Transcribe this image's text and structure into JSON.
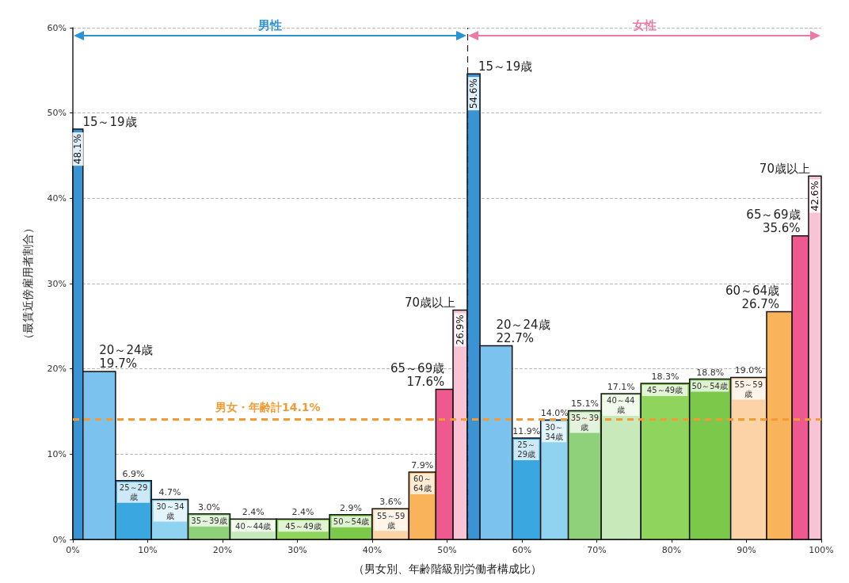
{
  "chart_data": {
    "type": "histogram",
    "xlabel": "（男女別、年齢階級別労働者構成比）",
    "ylabel": "（最賃近傍雇用者割合）",
    "bins": [
      0,
      1.35,
      5.7,
      10.5,
      15.4,
      21.0,
      27.2,
      34.3,
      40.0,
      44.9,
      48.5,
      50.8,
      52.7,
      54.4,
      58.7,
      62.5,
      66.2,
      70.6,
      75.9,
      82.4,
      87.9,
      92.7,
      96.1,
      98.3,
      100
    ],
    "values": [
      48.1,
      19.7,
      6.9,
      4.7,
      3.0,
      2.4,
      2.4,
      2.9,
      3.6,
      7.9,
      17.6,
      26.9,
      54.6,
      22.7,
      11.9,
      14.0,
      15.1,
      17.1,
      18.3,
      18.8,
      19.0,
      26.7,
      35.6,
      42.6
    ],
    "value_labels": [
      "48.1%",
      "19.7%",
      "6.9%",
      "4.7%",
      "3.0%",
      "2.4%",
      "2.4%",
      "2.9%",
      "3.6%",
      "7.9%",
      "17.6%",
      "26.9%",
      "54.6%",
      "22.7%",
      "11.9%",
      "14.0%",
      "15.1%",
      "17.1%",
      "18.3%",
      "18.8%",
      "19.0%",
      "26.7%",
      "35.6%",
      "42.6%"
    ],
    "colors": [
      "#3a93d3",
      "#7cc2ee",
      "#3aa7e0",
      "#8fd3f0",
      "#8fd07a",
      "#c8e9b9",
      "#8fd45c",
      "#7cc84a",
      "#fbd3a6",
      "#f9b35a",
      "#ee5a8f",
      "#f7c3d5",
      "#3a93d3",
      "#7cc2ee",
      "#3aa7e0",
      "#8fd3f0",
      "#8fd07a",
      "#c8e9b9",
      "#8fd45c",
      "#7cc84a",
      "#fbd3a6",
      "#f9b35a",
      "#ee5a8f",
      "#f7c3d5"
    ],
    "xlim": [
      0,
      100
    ],
    "xticks": [
      {
        "value": 0,
        "label": "0%"
      },
      {
        "value": 10,
        "label": "10%"
      },
      {
        "value": 20,
        "label": "20%"
      },
      {
        "value": 30,
        "label": "30%"
      },
      {
        "value": 40,
        "label": "40%"
      },
      {
        "value": 50,
        "label": "50%"
      },
      {
        "value": 60,
        "label": "60%"
      },
      {
        "value": 70,
        "label": "70%"
      },
      {
        "value": 80,
        "label": "80%"
      },
      {
        "value": 90,
        "label": "90%"
      },
      {
        "value": 100,
        "label": "100%"
      }
    ],
    "ylim": [
      0,
      60
    ],
    "yticks": [
      {
        "value": 0,
        "label": "0%"
      },
      {
        "value": 10,
        "label": "10%"
      },
      {
        "value": 20,
        "label": "20%"
      },
      {
        "value": 30,
        "label": "30%"
      },
      {
        "value": 40,
        "label": "40%"
      },
      {
        "value": 50,
        "label": "50%"
      },
      {
        "value": 60,
        "label": "60%"
      }
    ],
    "grid": "y",
    "ref_lines": [
      {
        "axis": "x",
        "value": 52.7,
        "label": null,
        "color": "#222222",
        "line_style": "dashed"
      },
      {
        "axis": "y",
        "value": 14.1,
        "label": "男女・年齢計14.1%",
        "color": "#f39a33",
        "line_style": "dashed"
      }
    ],
    "annotations": [
      "男性",
      "女性",
      {
        "text": "15～19歳",
        "x": 1.35,
        "y": 48.1
      },
      {
        "text": "20～24歳",
        "x": 5.7,
        "y": 19.7
      },
      {
        "text": "25～29歳",
        "x": 8.1,
        "y": 6.9
      },
      {
        "text": "30～34歳",
        "x": 13,
        "y": 4.7
      },
      {
        "text": "35～39歳",
        "x": 18.2,
        "y": 3.0
      },
      {
        "text": "40～44歳",
        "x": 24.1,
        "y": 2.4
      },
      {
        "text": "45～49歳",
        "x": 30.8,
        "y": 2.4
      },
      {
        "text": "50～54歳",
        "x": 37.2,
        "y": 2.9
      },
      {
        "text": "55～59歳",
        "x": 42.5,
        "y": 3.6
      },
      {
        "text": "60～64歳",
        "x": 46.7,
        "y": 7.9
      },
      {
        "text": "65～69歳",
        "x": 48.5,
        "y": 17.6
      },
      {
        "text": "70歳以上",
        "x": 50.8,
        "y": 26.9
      },
      {
        "text": "15～19歳",
        "x": 54.4,
        "y": 54.6
      },
      {
        "text": "20～24歳",
        "x": 58.7,
        "y": 22.7
      },
      {
        "text": "25～29歳",
        "x": 60.6,
        "y": 11.9
      },
      {
        "text": "30～34歳",
        "x": 64.3,
        "y": 14.0
      },
      {
        "text": "35～39歳",
        "x": 68.4,
        "y": 15.1
      },
      {
        "text": "40～44歳",
        "x": 73.2,
        "y": 17.1
      },
      {
        "text": "45～49歳",
        "x": 79.1,
        "y": 18.3
      },
      {
        "text": "50～54歳",
        "x": 85.1,
        "y": 18.8
      },
      {
        "text": "55～59歳",
        "x": 90.3,
        "y": 19.0
      },
      {
        "text": "60～64歳",
        "x": 92.7,
        "y": 26.7
      },
      {
        "text": "65～69歳",
        "x": 96.1,
        "y": 35.6
      },
      {
        "text": "70歳以上",
        "x": 98.3,
        "y": 42.6
      }
    ]
  }
}
